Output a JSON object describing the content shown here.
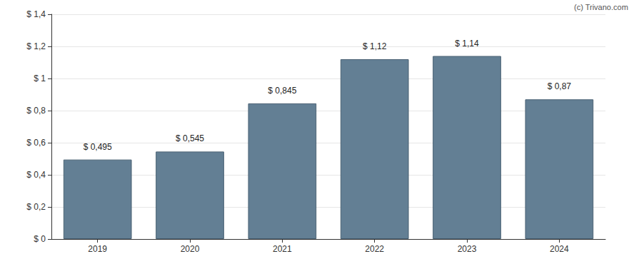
{
  "chart_data": {
    "type": "bar",
    "annotation": "(c) Trivano.com",
    "categories": [
      "2019",
      "2020",
      "2021",
      "2022",
      "2023",
      "2024"
    ],
    "values": [
      0.495,
      0.545,
      0.845,
      1.12,
      1.14,
      0.87
    ],
    "value_labels": [
      "$ 0,495",
      "$ 0,545",
      "$ 0,845",
      "$ 1,12",
      "$ 1,14",
      "$ 0,87"
    ],
    "color": "#637f94",
    "ylim": [
      0,
      1.4
    ],
    "yticks": [
      {
        "value": 0,
        "label": "$ 0"
      },
      {
        "value": 0.2,
        "label": "$ 0,2"
      },
      {
        "value": 0.4,
        "label": "$ 0,4"
      },
      {
        "value": 0.6,
        "label": "$ 0,6"
      },
      {
        "value": 0.8,
        "label": "$ 0,8"
      },
      {
        "value": 1,
        "label": "$ 1"
      },
      {
        "value": 1.2,
        "label": "$ 1,2"
      },
      {
        "value": 1.4,
        "label": "$ 1,4"
      }
    ],
    "grid": true,
    "data_labels": true
  }
}
